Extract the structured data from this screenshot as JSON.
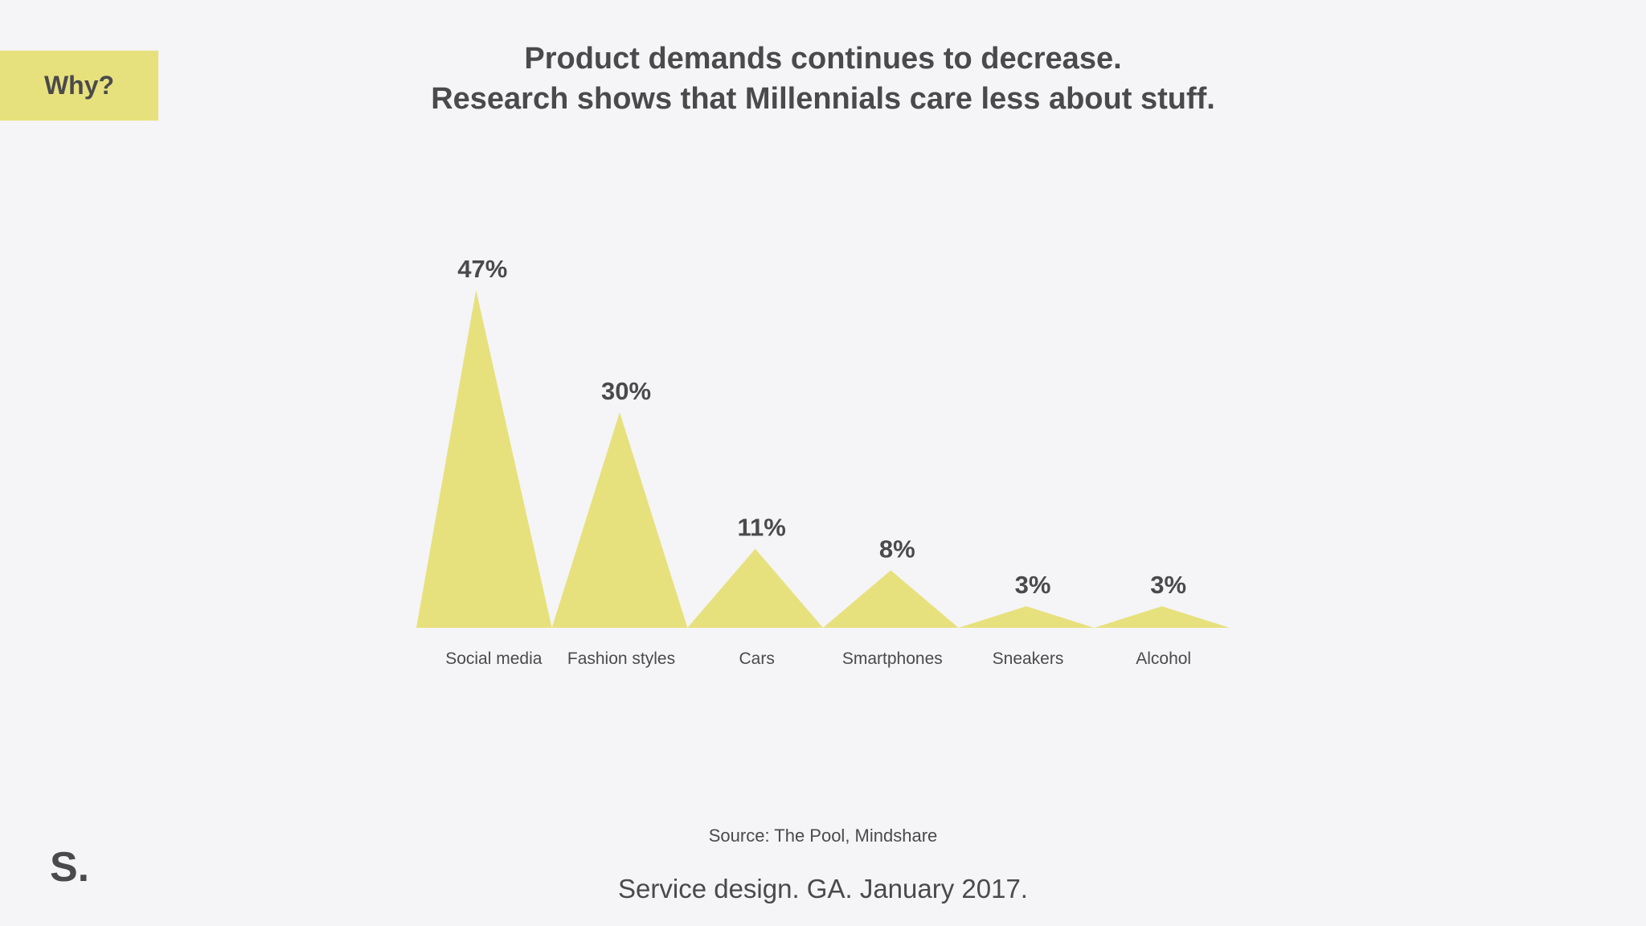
{
  "tag": {
    "label": "Why?"
  },
  "title": {
    "line1": "Product demands continues to decrease.",
    "line2": "Research shows that Millennials care less about stuff."
  },
  "chart_data": {
    "type": "area",
    "categories": [
      "Social media",
      "Fashion styles",
      "Cars",
      "Smartphones",
      "Sneakers",
      "Alcohol"
    ],
    "values": [
      47,
      30,
      11,
      8,
      3,
      3
    ],
    "data_labels": [
      "47%",
      "30%",
      "11%",
      "8%",
      "3%",
      "3%"
    ],
    "unit": "%",
    "ylim": [
      0,
      47
    ],
    "grid": false,
    "legend": "none",
    "color": "#e7e17d"
  },
  "source": "Source: The Pool, Mindshare",
  "footer": "Service design. GA. January 2017.",
  "logo": "S."
}
